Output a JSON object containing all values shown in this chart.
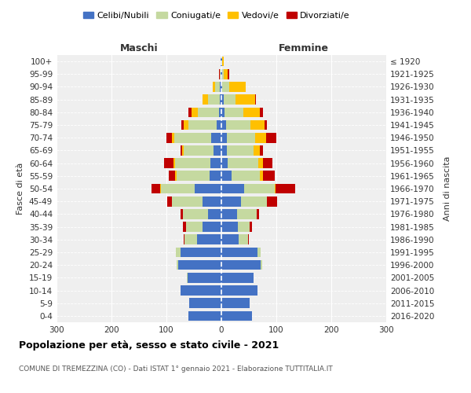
{
  "age_groups": [
    "0-4",
    "5-9",
    "10-14",
    "15-19",
    "20-24",
    "25-29",
    "30-34",
    "35-39",
    "40-44",
    "45-49",
    "50-54",
    "55-59",
    "60-64",
    "65-69",
    "70-74",
    "75-79",
    "80-84",
    "85-89",
    "90-94",
    "95-99",
    "100+"
  ],
  "birth_years": [
    "2016-2020",
    "2011-2015",
    "2006-2010",
    "2001-2005",
    "1996-2000",
    "1991-1995",
    "1986-1990",
    "1981-1985",
    "1976-1980",
    "1971-1975",
    "1966-1970",
    "1961-1965",
    "1956-1960",
    "1951-1955",
    "1946-1950",
    "1941-1945",
    "1936-1940",
    "1931-1935",
    "1926-1930",
    "1921-1925",
    "≤ 1920"
  ],
  "maschi": {
    "celibi": [
      60,
      58,
      75,
      62,
      78,
      75,
      45,
      35,
      25,
      35,
      48,
      22,
      20,
      14,
      18,
      8,
      5,
      3,
      3,
      1,
      1
    ],
    "coniugati": [
      0,
      0,
      0,
      1,
      4,
      8,
      22,
      30,
      45,
      55,
      62,
      60,
      65,
      55,
      68,
      52,
      38,
      22,
      8,
      2,
      1
    ],
    "vedovi": [
      0,
      0,
      0,
      0,
      0,
      0,
      0,
      0,
      0,
      0,
      2,
      2,
      2,
      3,
      4,
      8,
      12,
      10,
      5,
      0,
      0
    ],
    "divorziati": [
      0,
      0,
      0,
      0,
      0,
      0,
      2,
      5,
      5,
      8,
      15,
      12,
      18,
      3,
      10,
      5,
      5,
      0,
      0,
      1,
      0
    ]
  },
  "femmine": {
    "nubili": [
      55,
      52,
      65,
      58,
      72,
      65,
      32,
      30,
      28,
      35,
      42,
      18,
      12,
      10,
      10,
      8,
      5,
      4,
      2,
      1,
      1
    ],
    "coniugate": [
      0,
      0,
      0,
      0,
      2,
      6,
      16,
      22,
      36,
      48,
      55,
      52,
      55,
      48,
      52,
      45,
      35,
      22,
      12,
      3,
      1
    ],
    "vedove": [
      0,
      0,
      0,
      0,
      0,
      0,
      0,
      0,
      0,
      0,
      2,
      5,
      8,
      12,
      20,
      25,
      30,
      35,
      30,
      8,
      2
    ],
    "divorziate": [
      0,
      0,
      0,
      0,
      0,
      0,
      2,
      3,
      5,
      18,
      35,
      22,
      18,
      5,
      18,
      5,
      5,
      2,
      0,
      2,
      0
    ]
  },
  "colors": {
    "celibi": "#4472C4",
    "coniugati": "#c5d9a0",
    "vedovi": "#ffc000",
    "divorziati": "#c00000"
  },
  "xlim": 300,
  "title": "Popolazione per età, sesso e stato civile - 2021",
  "subtitle": "COMUNE DI TREMEZZINA (CO) - Dati ISTAT 1° gennaio 2021 - Elaborazione TUTTITALIA.IT",
  "ylabel_left": "Fasce di età",
  "ylabel_right": "Anni di nascita",
  "xlabel_left": "Maschi",
  "xlabel_right": "Femmine",
  "bg_color": "#efefef"
}
